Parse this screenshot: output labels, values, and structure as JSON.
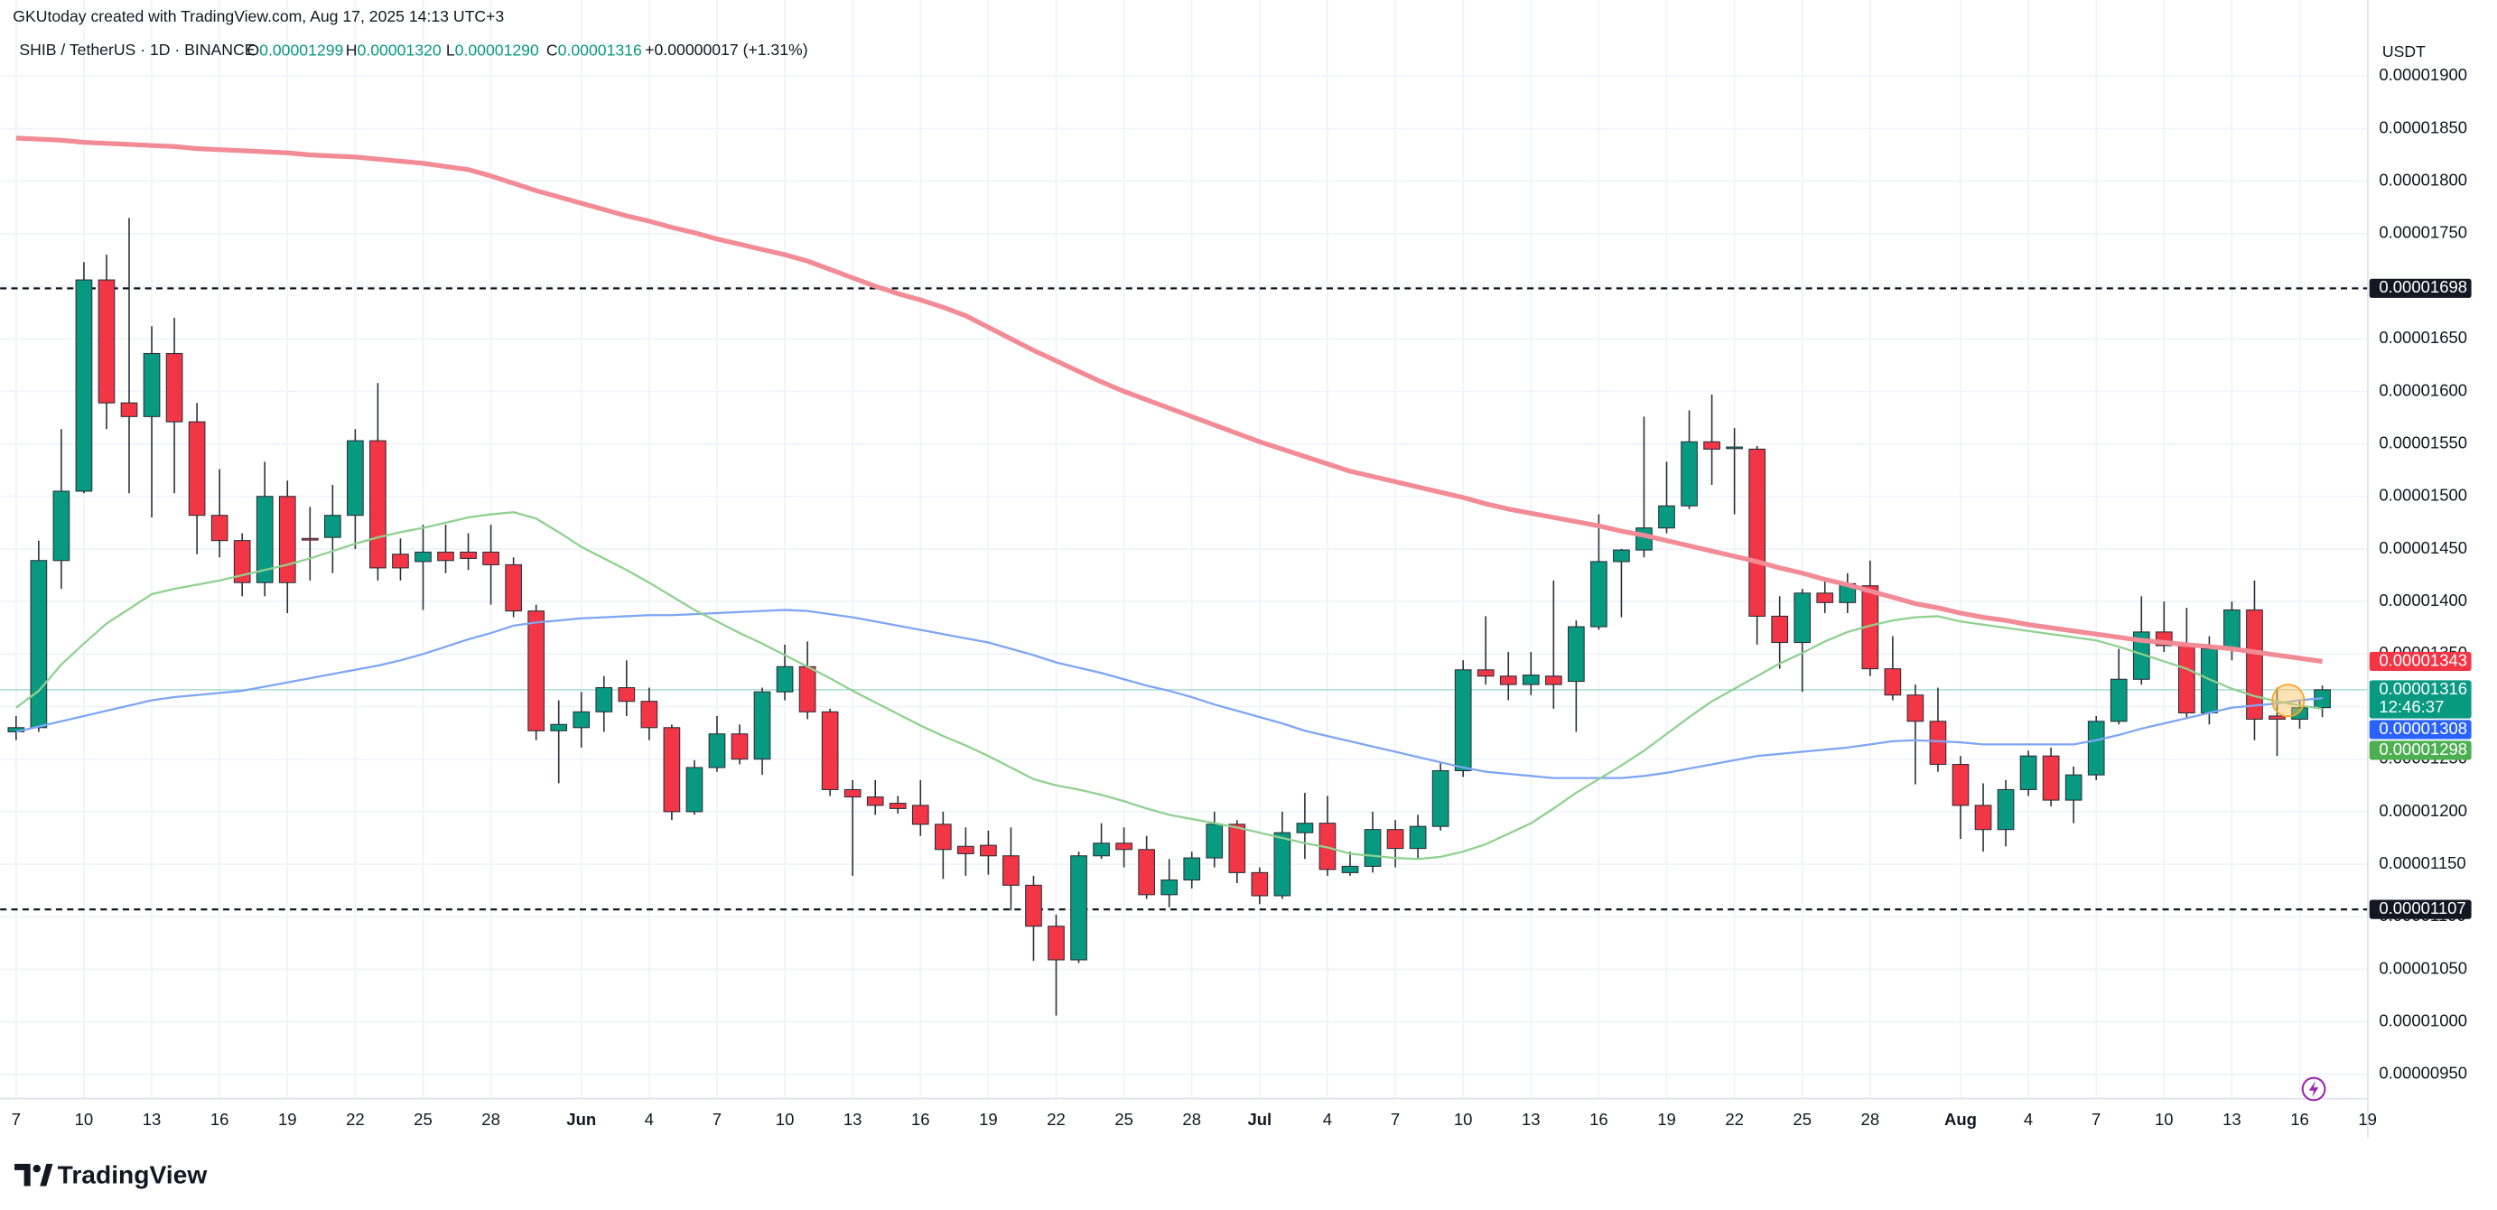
{
  "header": {
    "credit": "GKUtoday created with TradingView.com, Aug 17, 2025 14:13 UTC+3",
    "symbol": "SHIB / TetherUS · 1D · BINANCE",
    "ohlc": [
      {
        "key": "O",
        "value": "0.00001299"
      },
      {
        "key": "H",
        "value": "0.00001320"
      },
      {
        "key": "L",
        "value": "0.00001290"
      },
      {
        "key": "C",
        "value": "0.00001316"
      }
    ],
    "change": "+0.00000017 (+1.31%)"
  },
  "footer": "TradingView",
  "chart_data": {
    "type": "candlestick",
    "currency": "USDT",
    "categories": [
      "7",
      null,
      null,
      "10",
      null,
      null,
      "13",
      null,
      null,
      "16",
      null,
      null,
      "19",
      null,
      null,
      "22",
      null,
      null,
      "25",
      null,
      null,
      "28",
      null,
      null,
      null,
      "Jun",
      null,
      null,
      "4",
      null,
      null,
      "7",
      null,
      null,
      "10",
      null,
      null,
      "13",
      null,
      null,
      "16",
      null,
      null,
      "19",
      null,
      null,
      "22",
      null,
      null,
      "25",
      null,
      null,
      "28",
      null,
      null,
      "Jul",
      null,
      null,
      "4",
      null,
      null,
      "7",
      null,
      null,
      "10",
      null,
      null,
      "13",
      null,
      null,
      "16",
      null,
      null,
      "19",
      null,
      null,
      "22",
      null,
      null,
      "25",
      null,
      null,
      "28",
      null,
      null,
      null,
      "Aug",
      null,
      null,
      "4",
      null,
      null,
      "7",
      null,
      null,
      "10",
      null,
      null,
      "13",
      null,
      null,
      "16",
      null,
      null,
      "19"
    ],
    "open": [
      1.276e-05,
      1.28e-05,
      1.439e-05,
      1.505e-05,
      1.706e-05,
      1.589e-05,
      1.576e-05,
      1.636e-05,
      1.571e-05,
      1.482e-05,
      1.458e-05,
      1.418e-05,
      1.5e-05,
      1.46e-05,
      1.461e-05,
      1.482e-05,
      1.553e-05,
      1.445e-05,
      1.438e-05,
      1.447e-05,
      1.447e-05,
      1.447e-05,
      1.435e-05,
      1.391e-05,
      1.277e-05,
      1.28e-05,
      1.295e-05,
      1.318e-05,
      1.305e-05,
      1.28e-05,
      1.2e-05,
      1.242e-05,
      1.274e-05,
      1.25e-05,
      1.314e-05,
      1.338e-05,
      1.295e-05,
      1.221e-05,
      1.214e-05,
      1.208e-05,
      1.206e-05,
      1.188e-05,
      1.167e-05,
      1.168e-05,
      1.158e-05,
      1.13e-05,
      1.091e-05,
      1.059e-05,
      1.158e-05,
      1.17e-05,
      1.164e-05,
      1.121e-05,
      1.135e-05,
      1.156e-05,
      1.188e-05,
      1.142e-05,
      1.12e-05,
      1.18e-05,
      1.189e-05,
      1.142e-05,
      1.148e-05,
      1.183e-05,
      1.165e-05,
      1.186e-05,
      1.239e-05,
      1.335e-05,
      1.329e-05,
      1.321e-05,
      1.329e-05,
      1.324e-05,
      1.376e-05,
      1.438e-05,
      1.449e-05,
      1.47e-05,
      1.491e-05,
      1.552e-05,
      1.546e-05,
      1.545e-05,
      1.386e-05,
      1.361e-05,
      1.408e-05,
      1.399e-05,
      1.415e-05,
      1.336e-05,
      1.311e-05,
      1.286e-05,
      1.245e-05,
      1.206e-05,
      1.183e-05,
      1.221e-05,
      1.253e-05,
      1.211e-05,
      1.235e-05,
      1.286e-05,
      1.326e-05,
      1.371e-05,
      1.358e-05,
      1.294e-05,
      1.355e-05,
      1.392e-05,
      1.291e-05,
      1.288e-05,
      1.299e-05,
      null,
      null
    ],
    "high": [
      1.291e-05,
      1.458e-05,
      1.564e-05,
      1.723e-05,
      1.73e-05,
      1.765e-05,
      1.662e-05,
      1.67e-05,
      1.589e-05,
      1.526e-05,
      1.465e-05,
      1.533e-05,
      1.515e-05,
      1.49e-05,
      1.511e-05,
      1.564e-05,
      1.608e-05,
      1.46e-05,
      1.473e-05,
      1.473e-05,
      1.465e-05,
      1.473e-05,
      1.442e-05,
      1.397e-05,
      1.306e-05,
      1.314e-05,
      1.329e-05,
      1.344e-05,
      1.318e-05,
      1.283e-05,
      1.249e-05,
      1.291e-05,
      1.283e-05,
      1.318e-05,
      1.359e-05,
      1.362e-05,
      1.298e-05,
      1.23e-05,
      1.23e-05,
      1.215e-05,
      1.23e-05,
      1.2e-05,
      1.185e-05,
      1.182e-05,
      1.185e-05,
      1.139e-05,
      1.102e-05,
      1.162e-05,
      1.189e-05,
      1.185e-05,
      1.177e-05,
      1.155e-05,
      1.162e-05,
      1.2e-05,
      1.192e-05,
      1.147e-05,
      1.2e-05,
      1.218e-05,
      1.215e-05,
      1.162e-05,
      1.2e-05,
      1.192e-05,
      1.197e-05,
      1.246e-05,
      1.344e-05,
      1.386e-05,
      1.352e-05,
      1.352e-05,
      1.42e-05,
      1.382e-05,
      1.483e-05,
      1.45e-05,
      1.576e-05,
      1.533e-05,
      1.582e-05,
      1.597e-05,
      1.565e-05,
      1.548e-05,
      1.405e-05,
      1.412e-05,
      1.42e-05,
      1.427e-05,
      1.439e-05,
      1.367e-05,
      1.321e-05,
      1.318e-05,
      1.253e-05,
      1.227e-05,
      1.23e-05,
      1.258e-05,
      1.261e-05,
      1.243e-05,
      1.291e-05,
      1.355e-05,
      1.405e-05,
      1.4e-05,
      1.394e-05,
      1.367e-05,
      1.4e-05,
      1.42e-05,
      1.318e-05,
      1.306e-05,
      1.32e-05,
      null,
      null
    ],
    "low": [
      1.268e-05,
      1.276e-05,
      1.412e-05,
      1.503e-05,
      1.564e-05,
      1.503e-05,
      1.48e-05,
      1.503e-05,
      1.445e-05,
      1.442e-05,
      1.405e-05,
      1.405e-05,
      1.389e-05,
      1.42e-05,
      1.427e-05,
      1.45e-05,
      1.42e-05,
      1.42e-05,
      1.392e-05,
      1.427e-05,
      1.43e-05,
      1.397e-05,
      1.385e-05,
      1.268e-05,
      1.227e-05,
      1.261e-05,
      1.276e-05,
      1.291e-05,
      1.268e-05,
      1.192e-05,
      1.197e-05,
      1.238e-05,
      1.245e-05,
      1.235e-05,
      1.306e-05,
      1.288e-05,
      1.215e-05,
      1.139e-05,
      1.197e-05,
      1.198e-05,
      1.177e-05,
      1.136e-05,
      1.139e-05,
      1.14e-05,
      1.106e-05,
      1.058e-05,
      1.006e-05,
      1.056e-05,
      1.155e-05,
      1.147e-05,
      1.117e-05,
      1.109e-05,
      1.127e-05,
      1.147e-05,
      1.132e-05,
      1.112e-05,
      1.117e-05,
      1.155e-05,
      1.139e-05,
      1.139e-05,
      1.142e-05,
      1.147e-05,
      1.155e-05,
      1.182e-05,
      1.233e-05,
      1.321e-05,
      1.306e-05,
      1.311e-05,
      1.298e-05,
      1.276e-05,
      1.373e-05,
      1.385e-05,
      1.442e-05,
      1.465e-05,
      1.488e-05,
      1.511e-05,
      1.483e-05,
      1.359e-05,
      1.336e-05,
      1.314e-05,
      1.389e-05,
      1.389e-05,
      1.329e-05,
      1.306e-05,
      1.226e-05,
      1.238e-05,
      1.174e-05,
      1.162e-05,
      1.167e-05,
      1.215e-05,
      1.205e-05,
      1.189e-05,
      1.23e-05,
      1.283e-05,
      1.321e-05,
      1.352e-05,
      1.288e-05,
      1.283e-05,
      1.344e-05,
      1.268e-05,
      1.253e-05,
      1.279e-05,
      1.29e-05,
      null,
      null
    ],
    "close": [
      1.28e-05,
      1.439e-05,
      1.505e-05,
      1.706e-05,
      1.589e-05,
      1.576e-05,
      1.636e-05,
      1.571e-05,
      1.482e-05,
      1.458e-05,
      1.418e-05,
      1.5e-05,
      1.418e-05,
      1.459e-05,
      1.482e-05,
      1.553e-05,
      1.432e-05,
      1.432e-05,
      1.447e-05,
      1.439e-05,
      1.441e-05,
      1.435e-05,
      1.391e-05,
      1.277e-05,
      1.283e-05,
      1.295e-05,
      1.318e-05,
      1.305e-05,
      1.28e-05,
      1.2e-05,
      1.242e-05,
      1.274e-05,
      1.25e-05,
      1.314e-05,
      1.338e-05,
      1.295e-05,
      1.221e-05,
      1.214e-05,
      1.206e-05,
      1.203e-05,
      1.188e-05,
      1.164e-05,
      1.16e-05,
      1.158e-05,
      1.13e-05,
      1.091e-05,
      1.059e-05,
      1.158e-05,
      1.17e-05,
      1.164e-05,
      1.121e-05,
      1.135e-05,
      1.156e-05,
      1.188e-05,
      1.142e-05,
      1.12e-05,
      1.18e-05,
      1.189e-05,
      1.145e-05,
      1.148e-05,
      1.183e-05,
      1.165e-05,
      1.186e-05,
      1.239e-05,
      1.335e-05,
      1.329e-05,
      1.321e-05,
      1.33e-05,
      1.321e-05,
      1.376e-05,
      1.438e-05,
      1.449e-05,
      1.47e-05,
      1.491e-05,
      1.552e-05,
      1.545e-05,
      1.547e-05,
      1.386e-05,
      1.361e-05,
      1.408e-05,
      1.399e-05,
      1.417e-05,
      1.336e-05,
      1.311e-05,
      1.286e-05,
      1.245e-05,
      1.206e-05,
      1.183e-05,
      1.221e-05,
      1.253e-05,
      1.211e-05,
      1.235e-05,
      1.286e-05,
      1.326e-05,
      1.371e-05,
      1.358e-05,
      1.294e-05,
      1.355e-05,
      1.392e-05,
      1.288e-05,
      1.288e-05,
      1.299e-05,
      1.316e-05,
      null,
      null
    ],
    "up_color": "#089981",
    "down_color": "#f23645",
    "wick_color": "#2a2e39",
    "price_tag": {
      "label": "0.00001316",
      "countdown": "12:46:37"
    },
    "series": [
      {
        "color": "#f28b95",
        "width": 3,
        "last_label": "0.00001343",
        "values": [
          1.841e-05,
          1.84e-05,
          1.839e-05,
          1.837e-05,
          1.836e-05,
          1.835e-05,
          1.834e-05,
          1.833e-05,
          1.831e-05,
          1.83e-05,
          1.829e-05,
          1.828e-05,
          1.827e-05,
          1.825e-05,
          1.824e-05,
          1.823e-05,
          1.821e-05,
          1.819e-05,
          1.817e-05,
          1.814e-05,
          1.811e-05,
          1.805e-05,
          1.798e-05,
          1.791e-05,
          1.785e-05,
          1.779e-05,
          1.773e-05,
          1.767e-05,
          1.762e-05,
          1.756e-05,
          1.751e-05,
          1.745e-05,
          1.74e-05,
          1.735e-05,
          1.73e-05,
          1.724e-05,
          1.716e-05,
          1.708e-05,
          1.7e-05,
          1.693e-05,
          1.687e-05,
          1.68e-05,
          1.672e-05,
          1.661e-05,
          1.65e-05,
          1.639e-05,
          1.629e-05,
          1.619e-05,
          1.609e-05,
          1.6e-05,
          1.592e-05,
          1.584e-05,
          1.576e-05,
          1.568e-05,
          1.56e-05,
          1.552e-05,
          1.545e-05,
          1.538e-05,
          1.531e-05,
          1.524e-05,
          1.519e-05,
          1.514e-05,
          1.509e-05,
          1.504e-05,
          1.499e-05,
          1.493e-05,
          1.488e-05,
          1.484e-05,
          1.48e-05,
          1.476e-05,
          1.472e-05,
          1.467e-05,
          1.463e-05,
          1.458e-05,
          1.453e-05,
          1.448e-05,
          1.443e-05,
          1.438e-05,
          1.432e-05,
          1.427e-05,
          1.421e-05,
          1.416e-05,
          1.41e-05,
          1.404e-05,
          1.398e-05,
          1.394e-05,
          1.389e-05,
          1.385e-05,
          1.382e-05,
          1.378e-05,
          1.375e-05,
          1.372e-05,
          1.369e-05,
          1.366e-05,
          1.363e-05,
          1.361e-05,
          1.359e-05,
          1.357e-05,
          1.355e-05,
          1.352e-05,
          1.349e-05,
          1.346e-05,
          1.343e-05,
          null,
          null
        ]
      },
      {
        "color": "#7ea6f5",
        "width": 1.3,
        "last_label": "0.00001308",
        "values": [
          1.276e-05,
          1.281e-05,
          1.286e-05,
          1.291e-05,
          1.296e-05,
          1.301e-05,
          1.306e-05,
          1.309e-05,
          1.311e-05,
          1.313e-05,
          1.315e-05,
          1.319e-05,
          1.323e-05,
          1.327e-05,
          1.331e-05,
          1.335e-05,
          1.339e-05,
          1.344e-05,
          1.35e-05,
          1.357e-05,
          1.364e-05,
          1.37e-05,
          1.377e-05,
          1.38e-05,
          1.382e-05,
          1.384e-05,
          1.385e-05,
          1.386e-05,
          1.387e-05,
          1.387e-05,
          1.388e-05,
          1.389e-05,
          1.39e-05,
          1.391e-05,
          1.392e-05,
          1.391e-05,
          1.388e-05,
          1.385e-05,
          1.381e-05,
          1.377e-05,
          1.373e-05,
          1.369e-05,
          1.365e-05,
          1.361e-05,
          1.355e-05,
          1.349e-05,
          1.342e-05,
          1.337e-05,
          1.332e-05,
          1.326e-05,
          1.32e-05,
          1.315e-05,
          1.309e-05,
          1.302e-05,
          1.296e-05,
          1.29e-05,
          1.284e-05,
          1.277e-05,
          1.272e-05,
          1.267e-05,
          1.262e-05,
          1.257e-05,
          1.252e-05,
          1.247e-05,
          1.242e-05,
          1.238e-05,
          1.236e-05,
          1.234e-05,
          1.232e-05,
          1.232e-05,
          1.232e-05,
          1.232e-05,
          1.234e-05,
          1.237e-05,
          1.241e-05,
          1.245e-05,
          1.249e-05,
          1.253e-05,
          1.255e-05,
          1.257e-05,
          1.259e-05,
          1.261e-05,
          1.264e-05,
          1.267e-05,
          1.268e-05,
          1.267e-05,
          1.266e-05,
          1.264e-05,
          1.264e-05,
          1.264e-05,
          1.264e-05,
          1.264e-05,
          1.268e-05,
          1.273e-05,
          1.279e-05,
          1.284e-05,
          1.289e-05,
          1.294e-05,
          1.299e-05,
          1.301e-05,
          1.303e-05,
          1.306e-05,
          1.308e-05,
          null,
          null
        ]
      },
      {
        "color": "#8fd18f",
        "width": 1.3,
        "last_label": "0.00001298",
        "values": [
          1.299e-05,
          1.315e-05,
          1.34e-05,
          1.36e-05,
          1.379e-05,
          1.393e-05,
          1.407e-05,
          1.412e-05,
          1.416e-05,
          1.42e-05,
          1.425e-05,
          1.43e-05,
          1.435e-05,
          1.441e-05,
          1.448e-05,
          1.455e-05,
          1.461e-05,
          1.466e-05,
          1.47e-05,
          1.475e-05,
          1.48e-05,
          1.483e-05,
          1.485e-05,
          1.479e-05,
          1.466e-05,
          1.452e-05,
          1.441e-05,
          1.43e-05,
          1.418e-05,
          1.405e-05,
          1.392e-05,
          1.381e-05,
          1.37e-05,
          1.36e-05,
          1.349e-05,
          1.338e-05,
          1.327e-05,
          1.315e-05,
          1.304e-05,
          1.293e-05,
          1.282e-05,
          1.272e-05,
          1.263e-05,
          1.253e-05,
          1.242e-05,
          1.231e-05,
          1.225e-05,
          1.221e-05,
          1.216e-05,
          1.21e-05,
          1.203e-05,
          1.197e-05,
          1.193e-05,
          1.189e-05,
          1.185e-05,
          1.18e-05,
          1.175e-05,
          1.17e-05,
          1.166e-05,
          1.16e-05,
          1.158e-05,
          1.156e-05,
          1.155e-05,
          1.157e-05,
          1.162e-05,
          1.169e-05,
          1.179e-05,
          1.189e-05,
          1.203e-05,
          1.218e-05,
          1.231e-05,
          1.244e-05,
          1.258e-05,
          1.274e-05,
          1.29e-05,
          1.305e-05,
          1.317e-05,
          1.329e-05,
          1.341e-05,
          1.351e-05,
          1.362e-05,
          1.371e-05,
          1.377e-05,
          1.382e-05,
          1.385e-05,
          1.386e-05,
          1.381e-05,
          1.378e-05,
          1.375e-05,
          1.372e-05,
          1.369e-05,
          1.366e-05,
          1.363e-05,
          1.357e-05,
          1.35e-05,
          1.343e-05,
          1.336e-05,
          1.326e-05,
          1.317e-05,
          1.31e-05,
          1.305e-05,
          1.301e-05,
          1.298e-05,
          null,
          null
        ]
      }
    ],
    "levels": [
      {
        "value": 1.698e-05,
        "label": "0.00001698"
      },
      {
        "value": 1.107e-05,
        "label": "0.00001107"
      }
    ],
    "ylim": [
      9.27e-06,
      1.93e-05
    ],
    "yticks": [
      {
        "value": 9.5e-06,
        "label": "0.00000950"
      },
      {
        "value": 1e-05,
        "label": "0.00001000"
      },
      {
        "value": 1.05e-05,
        "label": "0.00001050"
      },
      {
        "value": 1.1e-05,
        "label": "0.00001100"
      },
      {
        "value": 1.15e-05,
        "label": "0.00001150"
      },
      {
        "value": 1.2e-05,
        "label": "0.00001200"
      },
      {
        "value": 1.25e-05,
        "label": "0.00001250"
      },
      {
        "value": 1.3e-05,
        "label": "0.00001300"
      },
      {
        "value": 1.35e-05,
        "label": "0.00001350"
      },
      {
        "value": 1.4e-05,
        "label": "0.00001400"
      },
      {
        "value": 1.45e-05,
        "label": "0.00001450"
      },
      {
        "value": 1.5e-05,
        "label": "0.00001500"
      },
      {
        "value": 1.55e-05,
        "label": "0.00001550"
      },
      {
        "value": 1.6e-05,
        "label": "0.00001600"
      },
      {
        "value": 1.65e-05,
        "label": "0.00001650"
      },
      {
        "value": 1.7e-05,
        "label": "0.00001700"
      },
      {
        "value": 1.75e-05,
        "label": "0.00001750"
      },
      {
        "value": 1.8e-05,
        "label": "0.00001800"
      },
      {
        "value": 1.85e-05,
        "label": "0.00001850"
      },
      {
        "value": 1.9e-05,
        "label": "0.00001900"
      }
    ],
    "grid": true
  }
}
